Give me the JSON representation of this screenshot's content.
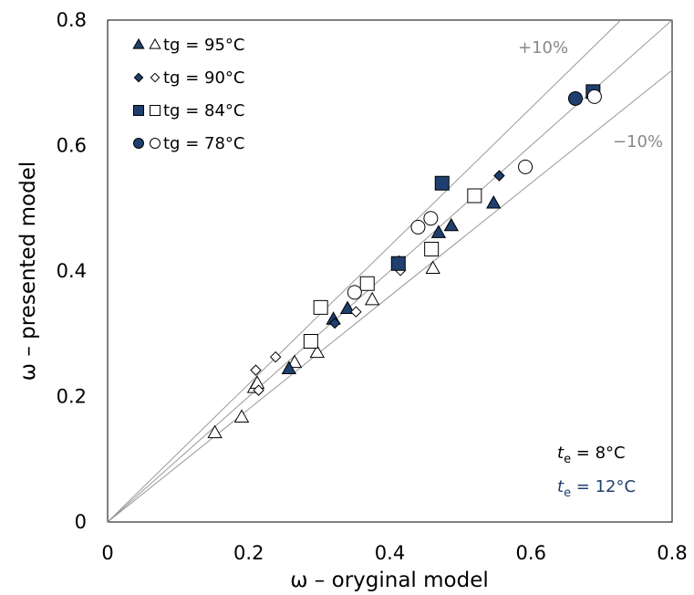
{
  "chart_data": {
    "type": "scatter",
    "xlabel": "ω – oryginal model",
    "ylabel": "ω – presented model",
    "xlim": [
      0,
      0.8
    ],
    "ylim": [
      0,
      0.8
    ],
    "x_ticks": [
      0,
      0.2,
      0.4,
      0.6,
      0.8
    ],
    "y_ticks": [
      0,
      0.2,
      0.4,
      0.6,
      0.8
    ],
    "x_tick_labels": [
      "0",
      "0.2",
      "0.4",
      "0.6",
      "0.8"
    ],
    "y_tick_labels": [
      "0",
      "0.2",
      "0.4",
      "0.6",
      "0.8"
    ],
    "grid": false,
    "legend_position": "top-left",
    "reference_lines": [
      {
        "label": "+10%",
        "slope": 1.1
      },
      {
        "label": "",
        "slope": 1.0
      },
      {
        "label": "−10%",
        "slope": 0.9
      }
    ],
    "colors": {
      "filled": "#1f3f6e",
      "open": "#ffffff",
      "edge": "#000000",
      "reference": "#999999",
      "annotation": "#888888",
      "te12": "#1f3f6e"
    },
    "series": [
      {
        "name": "tg = 95°C",
        "marker": "triangle",
        "te8": [
          [
            0.152,
            0.142
          ],
          [
            0.19,
            0.167
          ],
          [
            0.208,
            0.214
          ],
          [
            0.212,
            0.221
          ],
          [
            0.265,
            0.254
          ],
          [
            0.297,
            0.27
          ],
          [
            0.375,
            0.354
          ],
          [
            0.461,
            0.404
          ]
        ],
        "te12": [
          [
            0.257,
            0.244
          ],
          [
            0.32,
            0.323
          ],
          [
            0.34,
            0.34
          ],
          [
            0.469,
            0.461
          ],
          [
            0.487,
            0.472
          ],
          [
            0.547,
            0.508
          ]
        ]
      },
      {
        "name": "tg = 90°C",
        "marker": "diamond",
        "te8": [
          [
            0.21,
            0.242
          ],
          [
            0.214,
            0.21
          ],
          [
            0.238,
            0.263
          ],
          [
            0.352,
            0.335
          ],
          [
            0.415,
            0.401
          ]
        ],
        "te12": [
          [
            0.322,
            0.317
          ],
          [
            0.413,
            0.416
          ],
          [
            0.555,
            0.552
          ]
        ]
      },
      {
        "name": "tg = 84°C",
        "marker": "square",
        "te8": [
          [
            0.288,
            0.288
          ],
          [
            0.302,
            0.342
          ],
          [
            0.368,
            0.38
          ],
          [
            0.459,
            0.435
          ],
          [
            0.52,
            0.52
          ]
        ],
        "te12": [
          [
            0.412,
            0.412
          ],
          [
            0.474,
            0.54
          ],
          [
            0.688,
            0.686
          ]
        ]
      },
      {
        "name": "tg = 78°C",
        "marker": "circle",
        "te8": [
          [
            0.35,
            0.366
          ],
          [
            0.44,
            0.47
          ],
          [
            0.458,
            0.484
          ],
          [
            0.592,
            0.566
          ],
          [
            0.69,
            0.678
          ]
        ],
        "te12": [
          [
            0.663,
            0.675
          ]
        ]
      }
    ],
    "annotations": {
      "te8": {
        "italic": "t",
        "sub": "e",
        "rest": " = 8°C"
      },
      "te12": {
        "italic": "t",
        "sub": "e",
        "rest": " = 12°C"
      }
    }
  }
}
